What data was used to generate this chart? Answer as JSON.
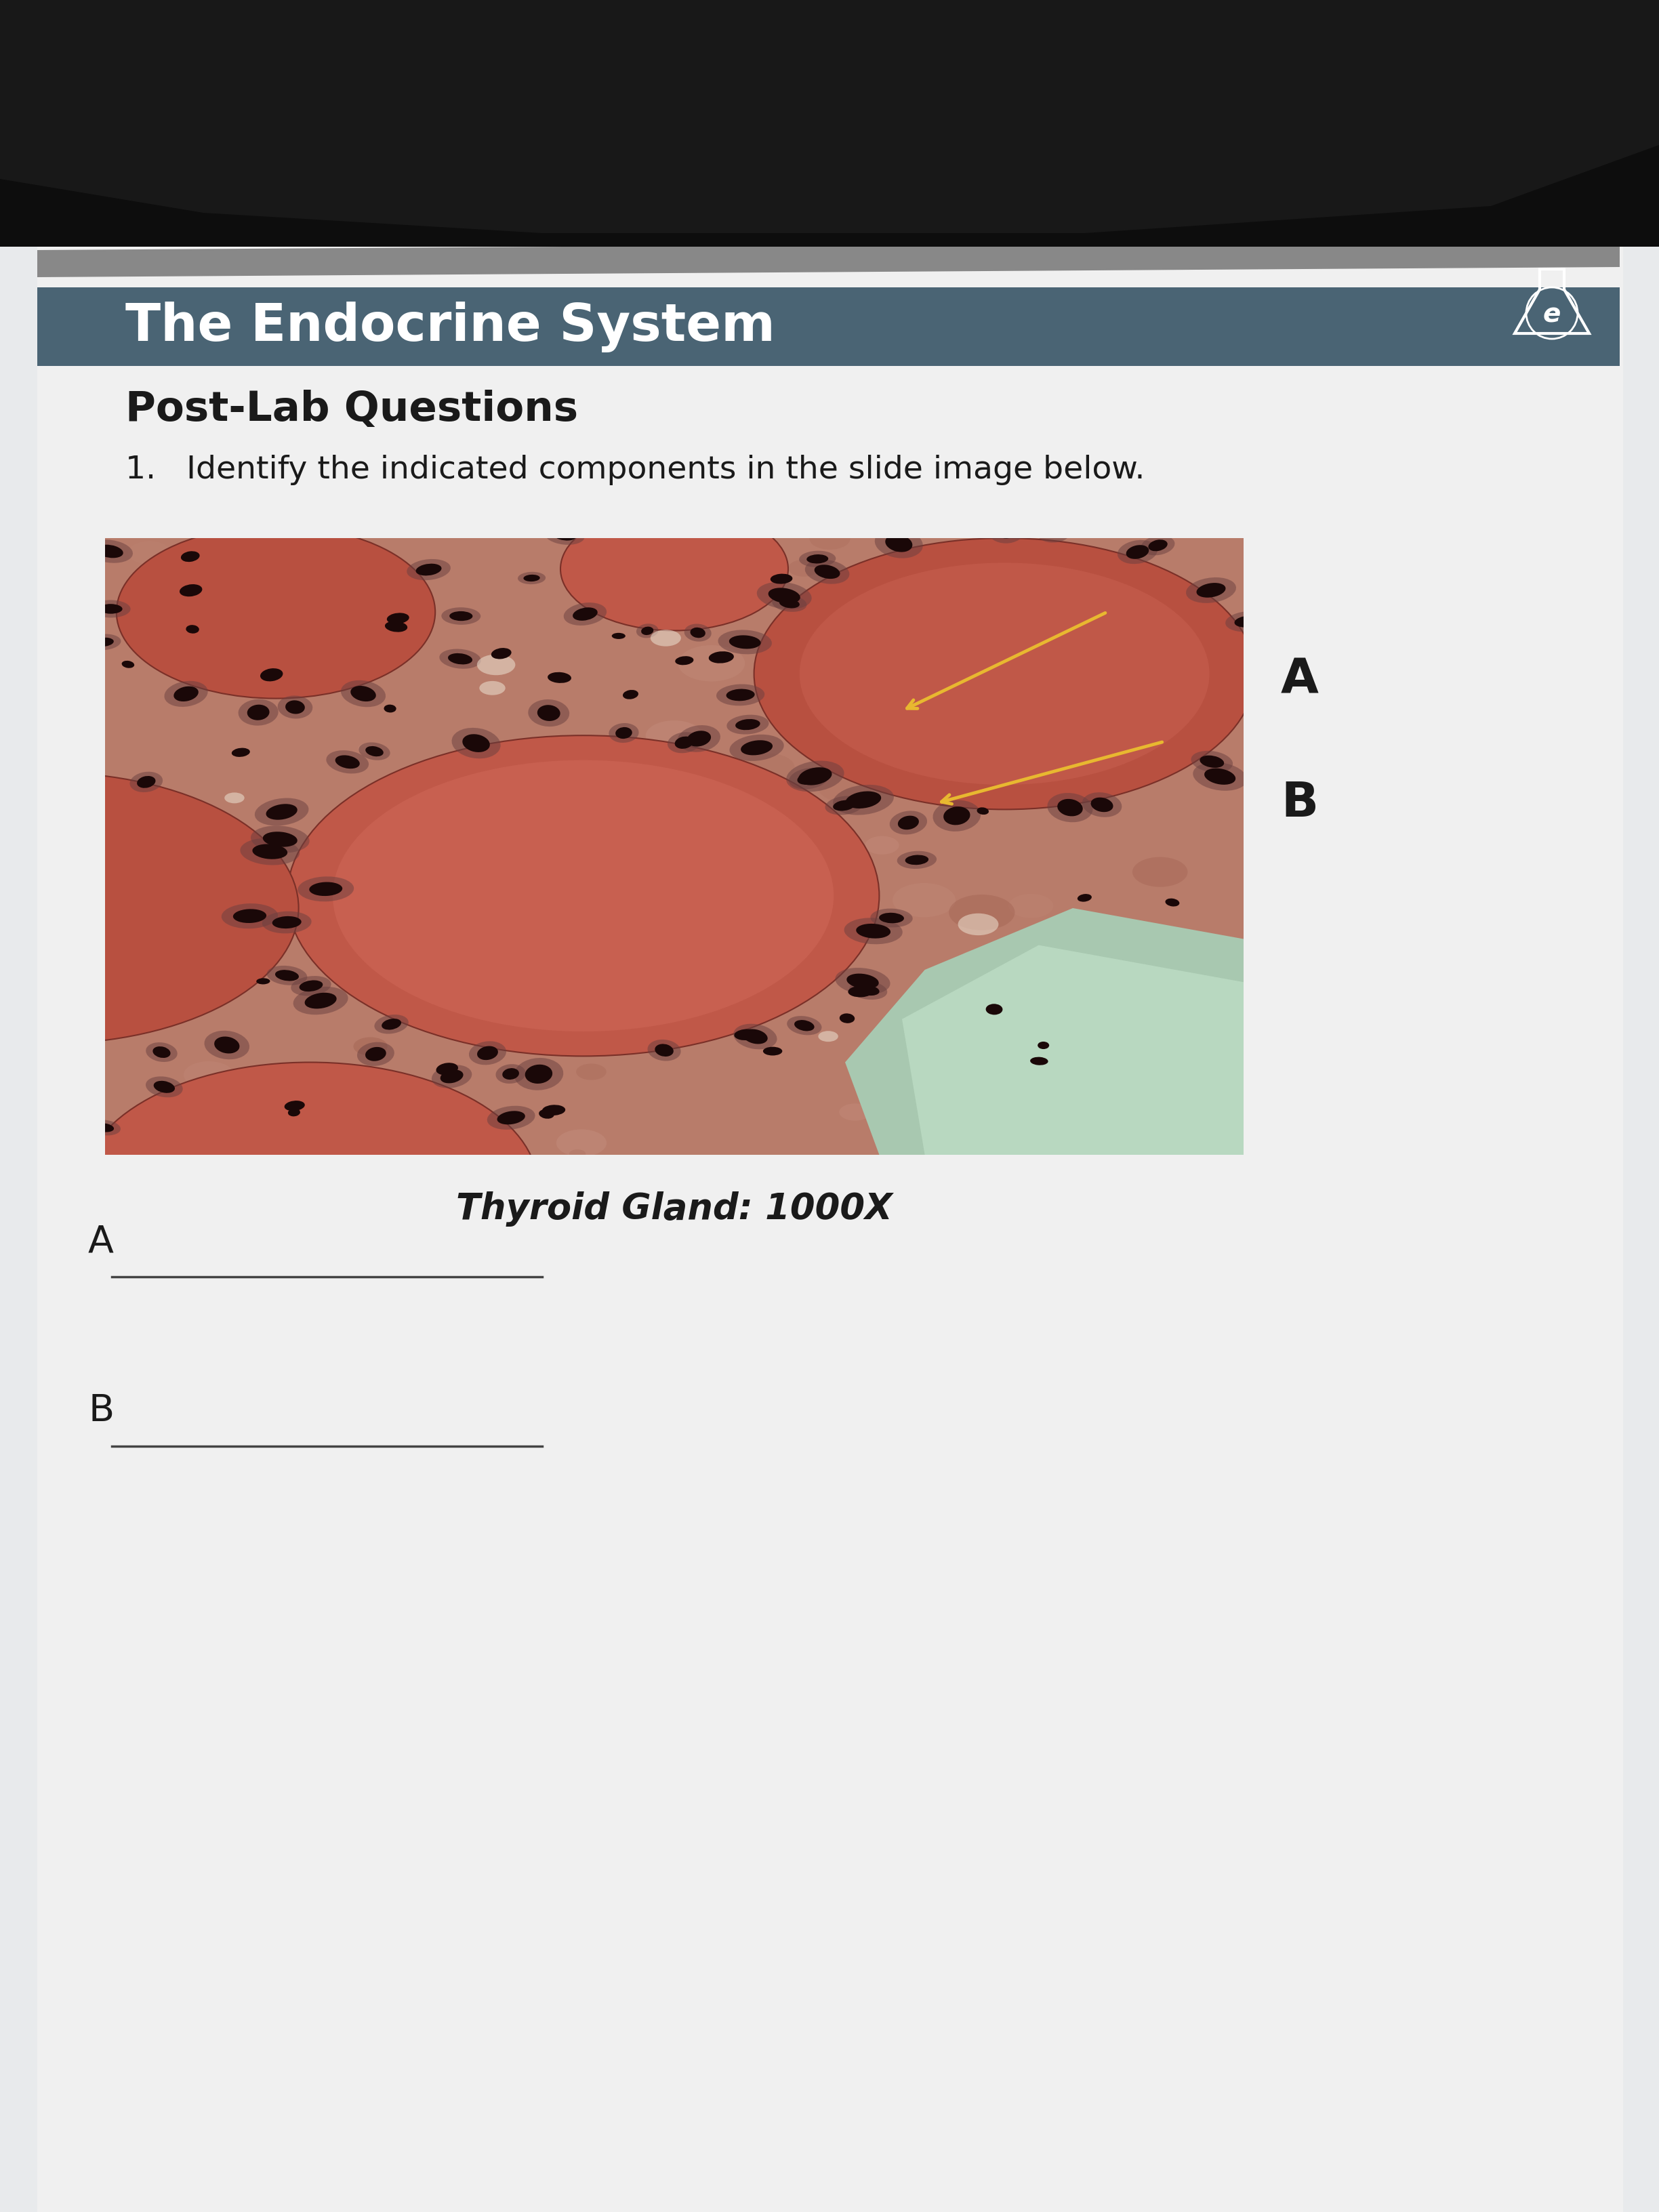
{
  "title": "The Endocrine System",
  "header_bg_color": "#4a6474",
  "header_text_color": "#ffffff",
  "page_bg_color": "#e8eaec",
  "paper_color": "#f0f0f0",
  "section_title": "Post-Lab Questions",
  "question_text": "1.   Identify the indicated components in the slide image below.",
  "image_caption": "Thyroid Gland: 1000X",
  "label_A": "A",
  "label_B": "B",
  "answer_label_A": "A",
  "answer_label_B": "B",
  "arrow_color": "#e8b830",
  "dark_top_color": "#111111",
  "dark_mid_color": "#222222"
}
